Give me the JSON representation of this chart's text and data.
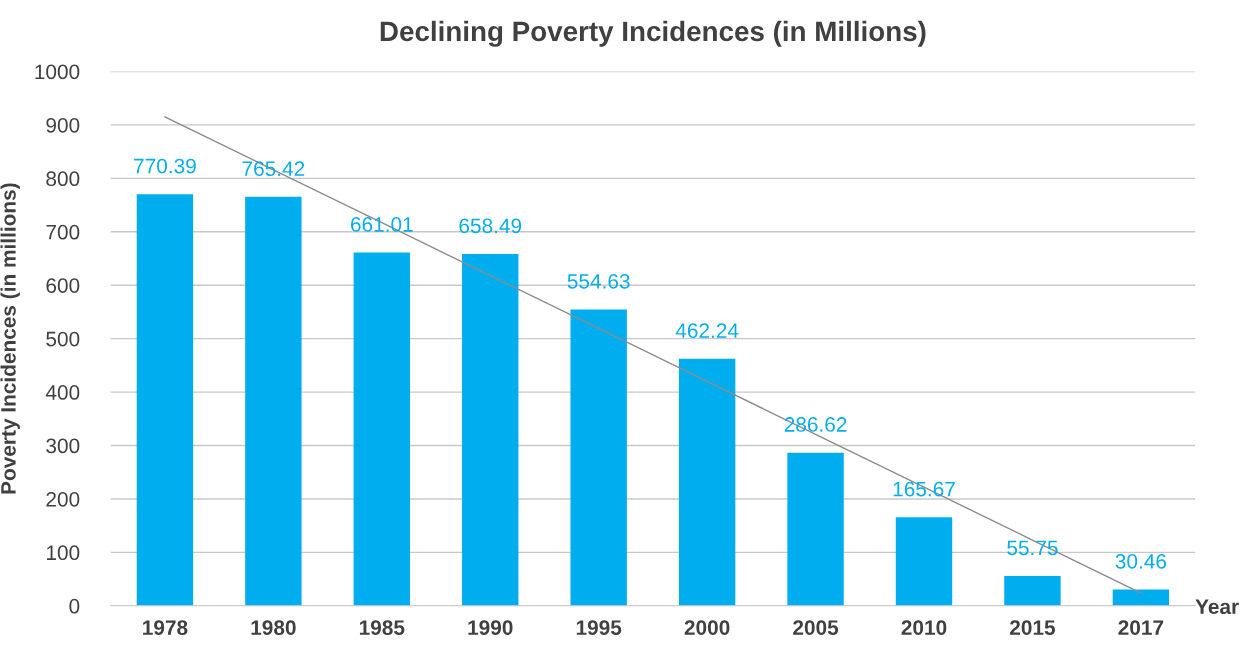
{
  "chart_data": {
    "type": "bar",
    "title": "Declining Poverty Incidences (in Millions)",
    "xlabel": "Year",
    "ylabel": "Poverty Incidences (in millions)",
    "categories": [
      "1978",
      "1980",
      "1985",
      "1990",
      "1995",
      "2000",
      "2005",
      "2010",
      "2015",
      "2017"
    ],
    "series": [
      {
        "color": "#00aeef",
        "values": [
          770.39,
          765.42,
          661.01,
          658.49,
          554.63,
          462.24,
          286.62,
          165.67,
          55.75,
          30.46
        ],
        "value_labels": [
          "770.39",
          "765.42",
          "661.01",
          "658.49",
          "554.63",
          "462.24",
          "286.62",
          "165.67",
          "55.75",
          "30.46"
        ]
      },
      {
        "type": "line",
        "color": "#8c8c8c",
        "values": [
          915,
          816,
          717,
          618,
          519,
          420,
          321,
          222,
          123,
          24
        ]
      }
    ],
    "ylim": [
      0,
      1000
    ],
    "yticks": [
      0,
      100,
      200,
      300,
      400,
      500,
      600,
      700,
      800,
      900,
      1000
    ],
    "grid": "y"
  }
}
